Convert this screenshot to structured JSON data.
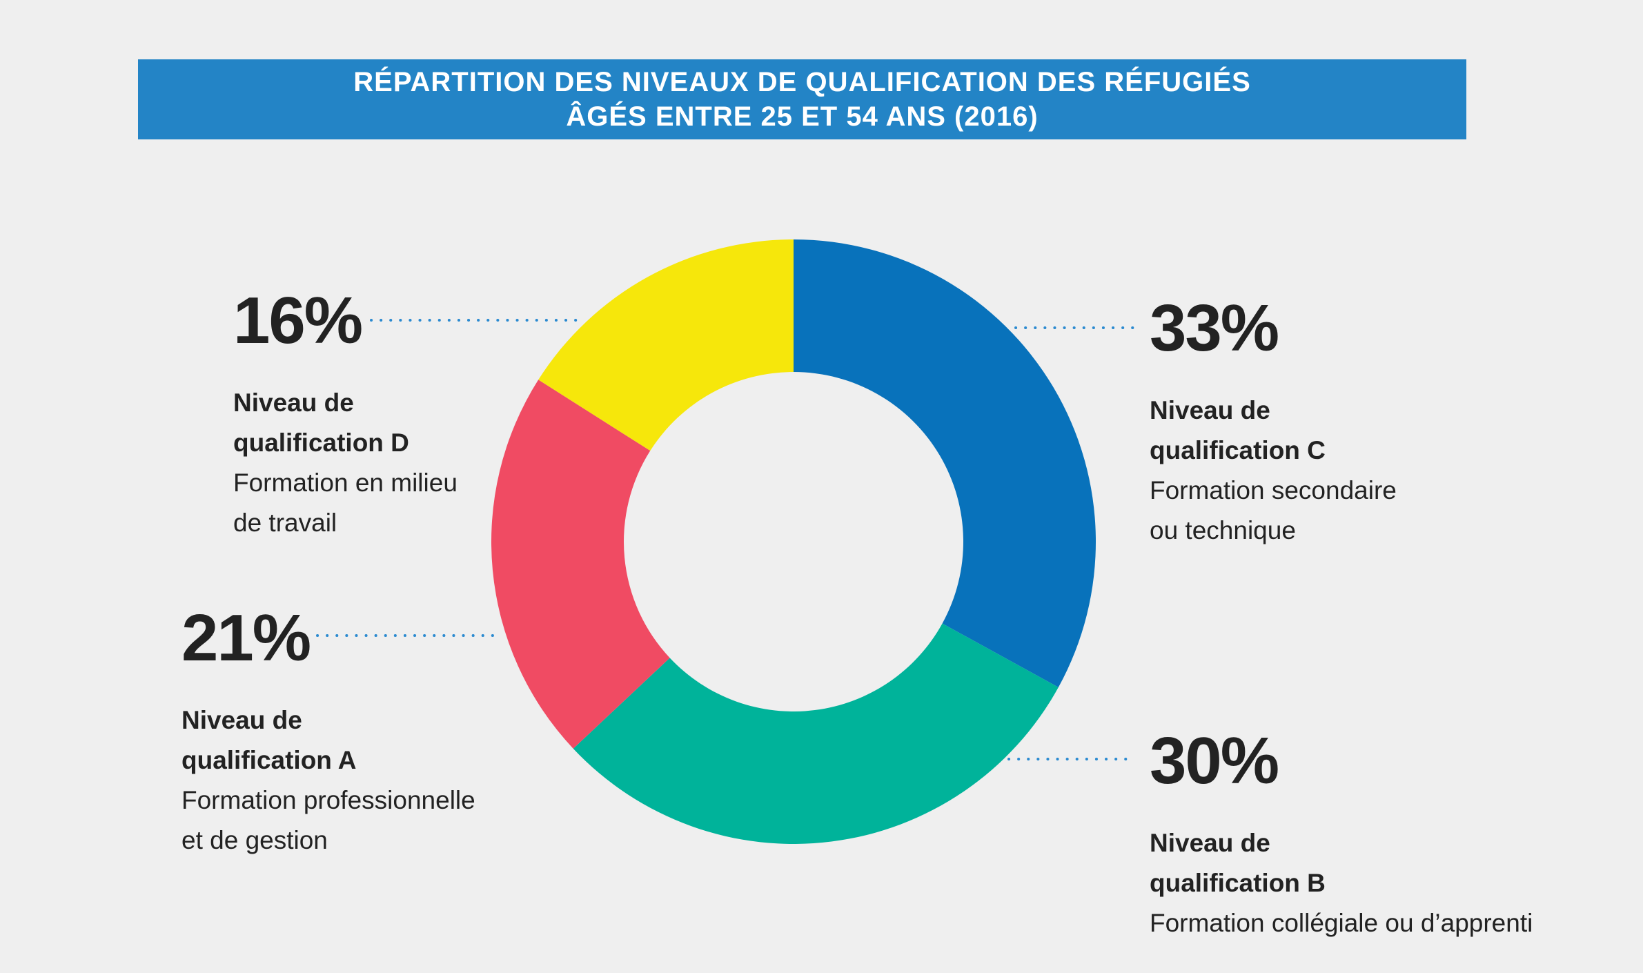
{
  "title": {
    "line1": "RÉPARTITION DES NIVEAUX DE QUALIFICATION DES RÉFUGIÉS",
    "line2": "ÂGÉS ENTRE 25 ET 54 ANS (2016)"
  },
  "chart_data": {
    "type": "pie",
    "donut": true,
    "title": "RÉPARTITION DES NIVEAUX DE QUALIFICATION DES RÉFUGIÉS ÂGÉS ENTRE 25 ET 54 ANS (2016)",
    "slices": [
      {
        "value": 33,
        "label": "33%",
        "level_line1": "Niveau de",
        "level_line2": "qualification C",
        "desc_line1": "Formation secondaire",
        "desc_line2": "ou technique",
        "color": "#0872bb"
      },
      {
        "value": 30,
        "label": "30%",
        "level_line1": "Niveau de",
        "level_line2": "qualification B",
        "desc_line1": "Formation collégiale ou d’apprenti",
        "desc_line2": "",
        "color": "#00b39a"
      },
      {
        "value": 21,
        "label": "21%",
        "level_line1": "Niveau de",
        "level_line2": "qualification A",
        "desc_line1": "Formation professionnelle",
        "desc_line2": "et de gestion",
        "color": "#f04b63"
      },
      {
        "value": 16,
        "label": "16%",
        "level_line1": "Niveau de",
        "level_line2": "qualification D",
        "desc_line1": "Formation en milieu",
        "desc_line2": "de travail",
        "color": "#f6e70b"
      }
    ],
    "leader_color": "#2b8ad0",
    "legend": "none"
  }
}
